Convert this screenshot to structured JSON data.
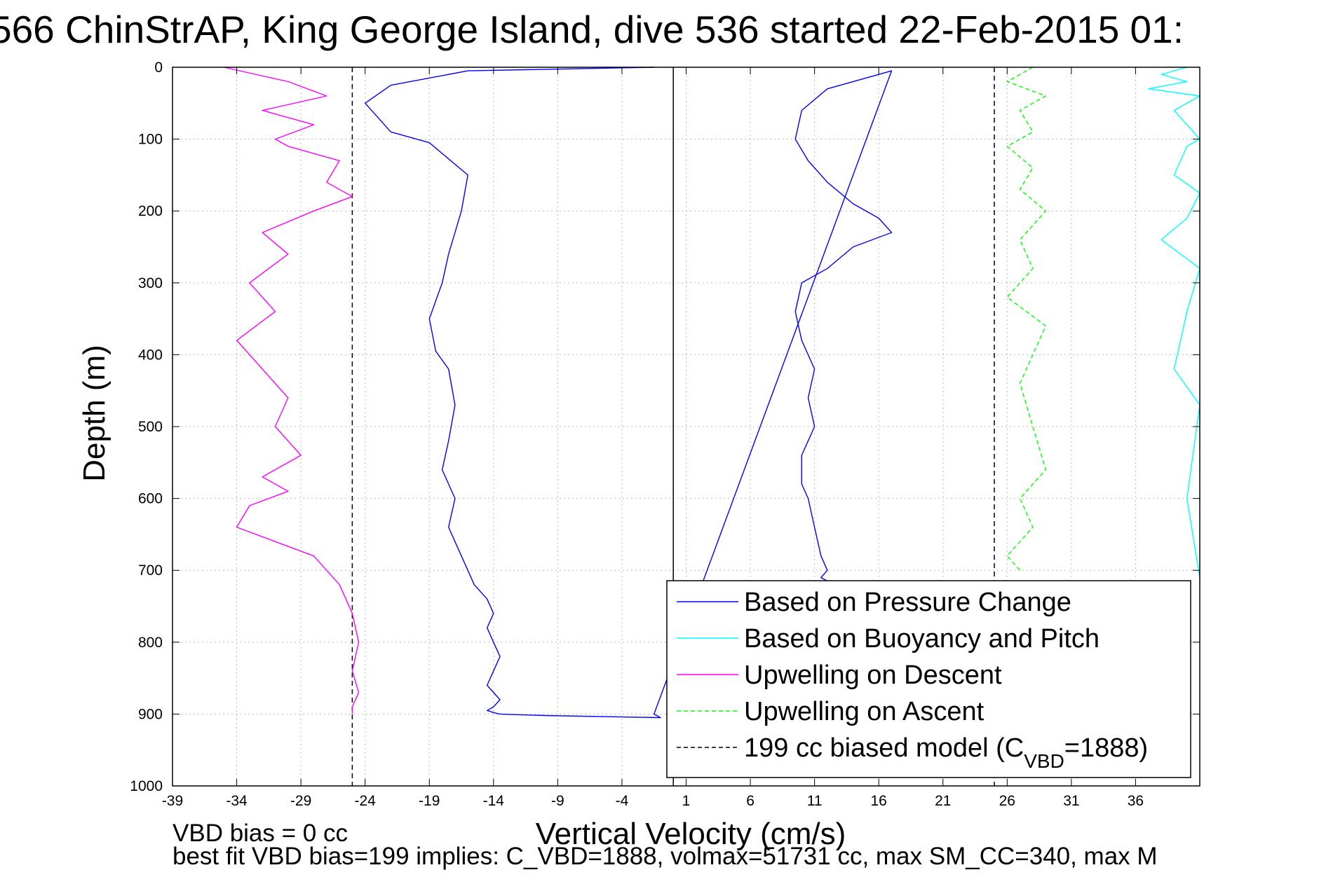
{
  "figure": {
    "title": "566 ChinStrAP, King George Island, dive 536 started 22-Feb-2015 01:",
    "note_vbd": "VBD bias = 0 cc",
    "note_bestfit": "best fit VBD bias=199 implies: C_VBD=1888, volmax=51731 cc, max SM_CC=340, max M"
  },
  "chart_data": {
    "type": "line",
    "xlabel": "Vertical Velocity (cm/s)",
    "ylabel": "Depth (m)",
    "xlim": [
      -39,
      41
    ],
    "ylim": [
      0,
      1000
    ],
    "y_reversed": true,
    "xticks": [
      -39,
      -34,
      -29,
      -24,
      -19,
      -14,
      -9,
      -4,
      1,
      6,
      11,
      16,
      21,
      26,
      31,
      36
    ],
    "yticks": [
      0,
      100,
      200,
      300,
      400,
      500,
      600,
      700,
      800,
      900,
      1000
    ],
    "grid": true,
    "legend_position": "lower-right",
    "vertical_lines": [
      {
        "x": 0,
        "style": "solid",
        "color": "#000000"
      },
      {
        "x": -25.0,
        "style": "dashed",
        "color": "#000000"
      },
      {
        "x": 25.0,
        "style": "dashed",
        "color": "#000000"
      }
    ],
    "series": [
      {
        "name": "Based on Pressure Change",
        "color": "#0000ff",
        "style": "solid",
        "x": [
          -1.5,
          -16,
          -22,
          -24,
          -22,
          -20,
          -19,
          -18,
          -16,
          -16.5,
          -17.5,
          -18,
          -19,
          -18.5,
          -17.5,
          -17,
          -17.5,
          -18,
          -17,
          -17.5,
          -16.5,
          -16,
          -15.5,
          -14.5,
          -14,
          -14.5,
          -14,
          -13.5,
          -14,
          -14.5,
          -13.5,
          -14,
          -14.5,
          -14,
          -13.5,
          -10,
          -1,
          -1.5,
          17,
          12,
          10,
          9.5,
          10.5,
          12,
          14,
          16,
          17,
          14,
          12,
          10,
          9.5,
          10,
          11,
          10.5,
          11,
          10,
          10,
          10.5,
          11,
          11.5,
          12,
          11.5,
          12
        ],
        "y": [
          0,
          5,
          25,
          50,
          90,
          100,
          105,
          120,
          150,
          200,
          260,
          300,
          350,
          395,
          420,
          470,
          520,
          560,
          600,
          640,
          680,
          700,
          720,
          740,
          760,
          780,
          800,
          820,
          840,
          860,
          880,
          890,
          895,
          898,
          900,
          902,
          905,
          900,
          5,
          30,
          60,
          100,
          130,
          160,
          190,
          210,
          230,
          250,
          280,
          300,
          340,
          380,
          420,
          460,
          500,
          540,
          580,
          600,
          640,
          680,
          700,
          710,
          715
        ]
      },
      {
        "name": "Based on Buoyancy and Pitch",
        "color": "#00ffff",
        "style": "solid",
        "x": [
          40,
          38,
          40,
          37,
          41,
          39,
          40,
          41,
          40,
          39,
          41,
          40,
          38,
          41,
          40,
          39,
          41,
          40,
          41
        ],
        "y": [
          0,
          10,
          20,
          30,
          40,
          60,
          80,
          100,
          110,
          150,
          175,
          210,
          240,
          280,
          340,
          420,
          470,
          600,
          710
        ]
      },
      {
        "name": "Upwelling on Descent",
        "color": "#ff00ff",
        "style": "solid",
        "x": [
          -35,
          -30,
          -27,
          -32,
          -28,
          -31,
          -30,
          -26,
          -27,
          -25,
          -28,
          -32,
          -30,
          -33,
          -31,
          -34,
          -32,
          -30,
          -31,
          -29,
          -32,
          -30,
          -33,
          -34,
          -31,
          -28,
          -27,
          -26,
          -25,
          -24.5,
          -25,
          -24.5,
          -25,
          -25
        ],
        "y": [
          0,
          20,
          40,
          60,
          80,
          100,
          110,
          130,
          160,
          180,
          200,
          230,
          260,
          300,
          340,
          380,
          420,
          460,
          500,
          540,
          570,
          590,
          610,
          640,
          660,
          680,
          700,
          720,
          760,
          800,
          840,
          870,
          890,
          900
        ]
      },
      {
        "name": "Upwelling on Ascent",
        "color": "#00ff00",
        "style": "dashed",
        "x": [
          28,
          26,
          29,
          27,
          28,
          26,
          28,
          27,
          29,
          27,
          28,
          26,
          29,
          28,
          27,
          28,
          29,
          27,
          28,
          26,
          27
        ],
        "y": [
          0,
          20,
          40,
          60,
          90,
          110,
          140,
          170,
          200,
          240,
          280,
          320,
          360,
          400,
          440,
          500,
          560,
          600,
          640,
          680,
          700
        ]
      }
    ],
    "legend": [
      {
        "label": "Based on Pressure Change",
        "color": "#0000ff",
        "style": "solid"
      },
      {
        "label": "Based on Buoyancy and Pitch",
        "color": "#00ffff",
        "style": "solid"
      },
      {
        "label": "Upwelling on Descent",
        "color": "#ff00ff",
        "style": "solid"
      },
      {
        "label": "Upwelling on Ascent",
        "color": "#00ff00",
        "style": "dashed"
      },
      {
        "label": "199 cc biased model (C",
        "sub": "VBD",
        "suffix": "=1888)",
        "color": "#000000",
        "style": "dashed"
      }
    ]
  }
}
